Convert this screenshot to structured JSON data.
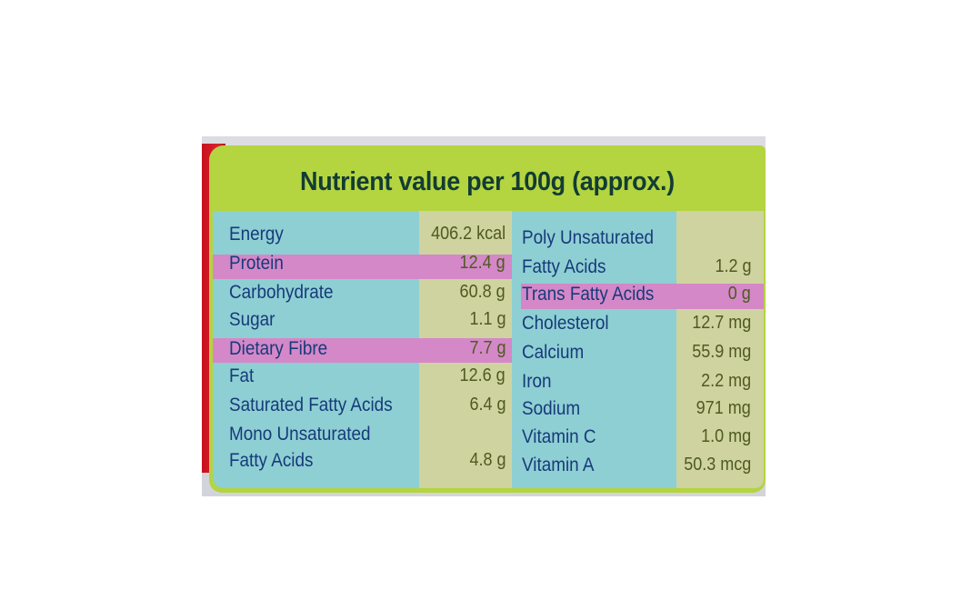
{
  "title": "Nutrient value per 100g (approx.)",
  "left": [
    {
      "name": "Energy",
      "value": "406.2 kcal"
    },
    {
      "name": "Protein",
      "value": "12.4 g"
    },
    {
      "name": "Carbohydrate",
      "value": "60.8 g"
    },
    {
      "name": "Sugar",
      "value": "1.1 g"
    },
    {
      "name": "Dietary Fibre",
      "value": "7.7 g"
    },
    {
      "name": "Fat",
      "value": "12.6 g"
    },
    {
      "name": "Saturated Fatty Acids",
      "value": "6.4 g"
    },
    {
      "name": "Mono Unsaturated",
      "value": ""
    },
    {
      "name": "Fatty Acids",
      "value": "4.8 g"
    }
  ],
  "right": [
    {
      "name": "Poly Unsaturated",
      "value": ""
    },
    {
      "name": "Fatty Acids",
      "value": "1.2 g"
    },
    {
      "name": "Trans Fatty Acids",
      "value": "0 g"
    },
    {
      "name": "Cholesterol",
      "value": "12.7 mg"
    },
    {
      "name": "Calcium",
      "value": "55.9 mg"
    },
    {
      "name": "Iron",
      "value": "2.2 mg"
    },
    {
      "name": "Sodium",
      "value": "971 mg"
    },
    {
      "name": "Vitamin C",
      "value": "1.0 mg"
    },
    {
      "name": "Vitamin A",
      "value": "50.3 mcg"
    }
  ],
  "colors": {
    "header_green": "#b4d440",
    "table_blue": "#8ecfd3",
    "value_column": "#cfd3a0",
    "highlight_pink": "#d488c8",
    "text_blue": "#173a7a"
  }
}
